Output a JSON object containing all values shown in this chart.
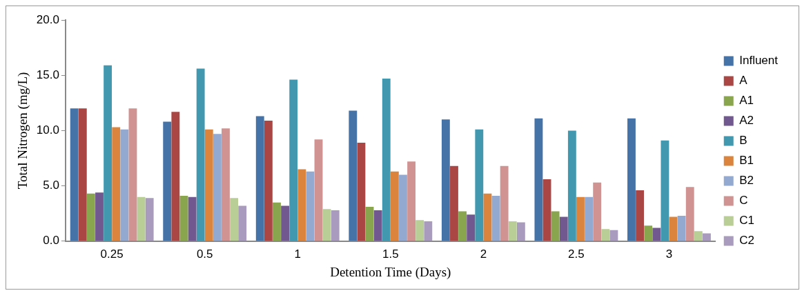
{
  "chart_data": {
    "type": "bar",
    "xlabel": "Detention Time (Days)",
    "ylabel": "Total Nitrogen (mg/L)",
    "categories": [
      "0.25",
      "0.5",
      "1",
      "1.5",
      "2",
      "2.5",
      "3"
    ],
    "ylim": [
      0,
      20
    ],
    "yticks": [
      {
        "value": 0,
        "label": "0.0"
      },
      {
        "value": 5,
        "label": "5.0"
      },
      {
        "value": 10,
        "label": "10.0"
      },
      {
        "value": 15,
        "label": "15.0"
      },
      {
        "value": 20,
        "label": "20.0"
      }
    ],
    "grid": false,
    "legend": "right",
    "series": [
      {
        "name": "Influent",
        "color": "#4572a7",
        "values": [
          12.0,
          10.8,
          11.3,
          11.8,
          11.0,
          11.1,
          11.1
        ]
      },
      {
        "name": "A",
        "color": "#aa4643",
        "values": [
          12.0,
          11.7,
          10.9,
          8.9,
          6.8,
          5.6,
          4.6
        ]
      },
      {
        "name": "A1",
        "color": "#89a54e",
        "values": [
          4.3,
          4.1,
          3.5,
          3.1,
          2.7,
          2.7,
          1.4
        ]
      },
      {
        "name": "A2",
        "color": "#71588f",
        "values": [
          4.4,
          4.0,
          3.2,
          2.8,
          2.4,
          2.2,
          1.2
        ]
      },
      {
        "name": "B",
        "color": "#4198af",
        "values": [
          15.9,
          15.6,
          14.6,
          14.7,
          10.1,
          10.0,
          9.1
        ]
      },
      {
        "name": "B1",
        "color": "#db843d",
        "values": [
          10.3,
          10.1,
          6.5,
          6.3,
          4.3,
          4.0,
          2.2
        ]
      },
      {
        "name": "B2",
        "color": "#93a9cf",
        "values": [
          10.1,
          9.7,
          6.3,
          6.0,
          4.1,
          4.0,
          2.3
        ]
      },
      {
        "name": "C",
        "color": "#d19392",
        "values": [
          12.0,
          10.2,
          9.2,
          7.2,
          6.8,
          5.3,
          4.9
        ]
      },
      {
        "name": "C1",
        "color": "#b9cd96",
        "values": [
          4.0,
          3.9,
          2.9,
          1.9,
          1.8,
          1.1,
          0.9
        ]
      },
      {
        "name": "C2",
        "color": "#a99bbd",
        "values": [
          3.9,
          3.2,
          2.8,
          1.8,
          1.7,
          1.0,
          0.7
        ]
      }
    ]
  }
}
